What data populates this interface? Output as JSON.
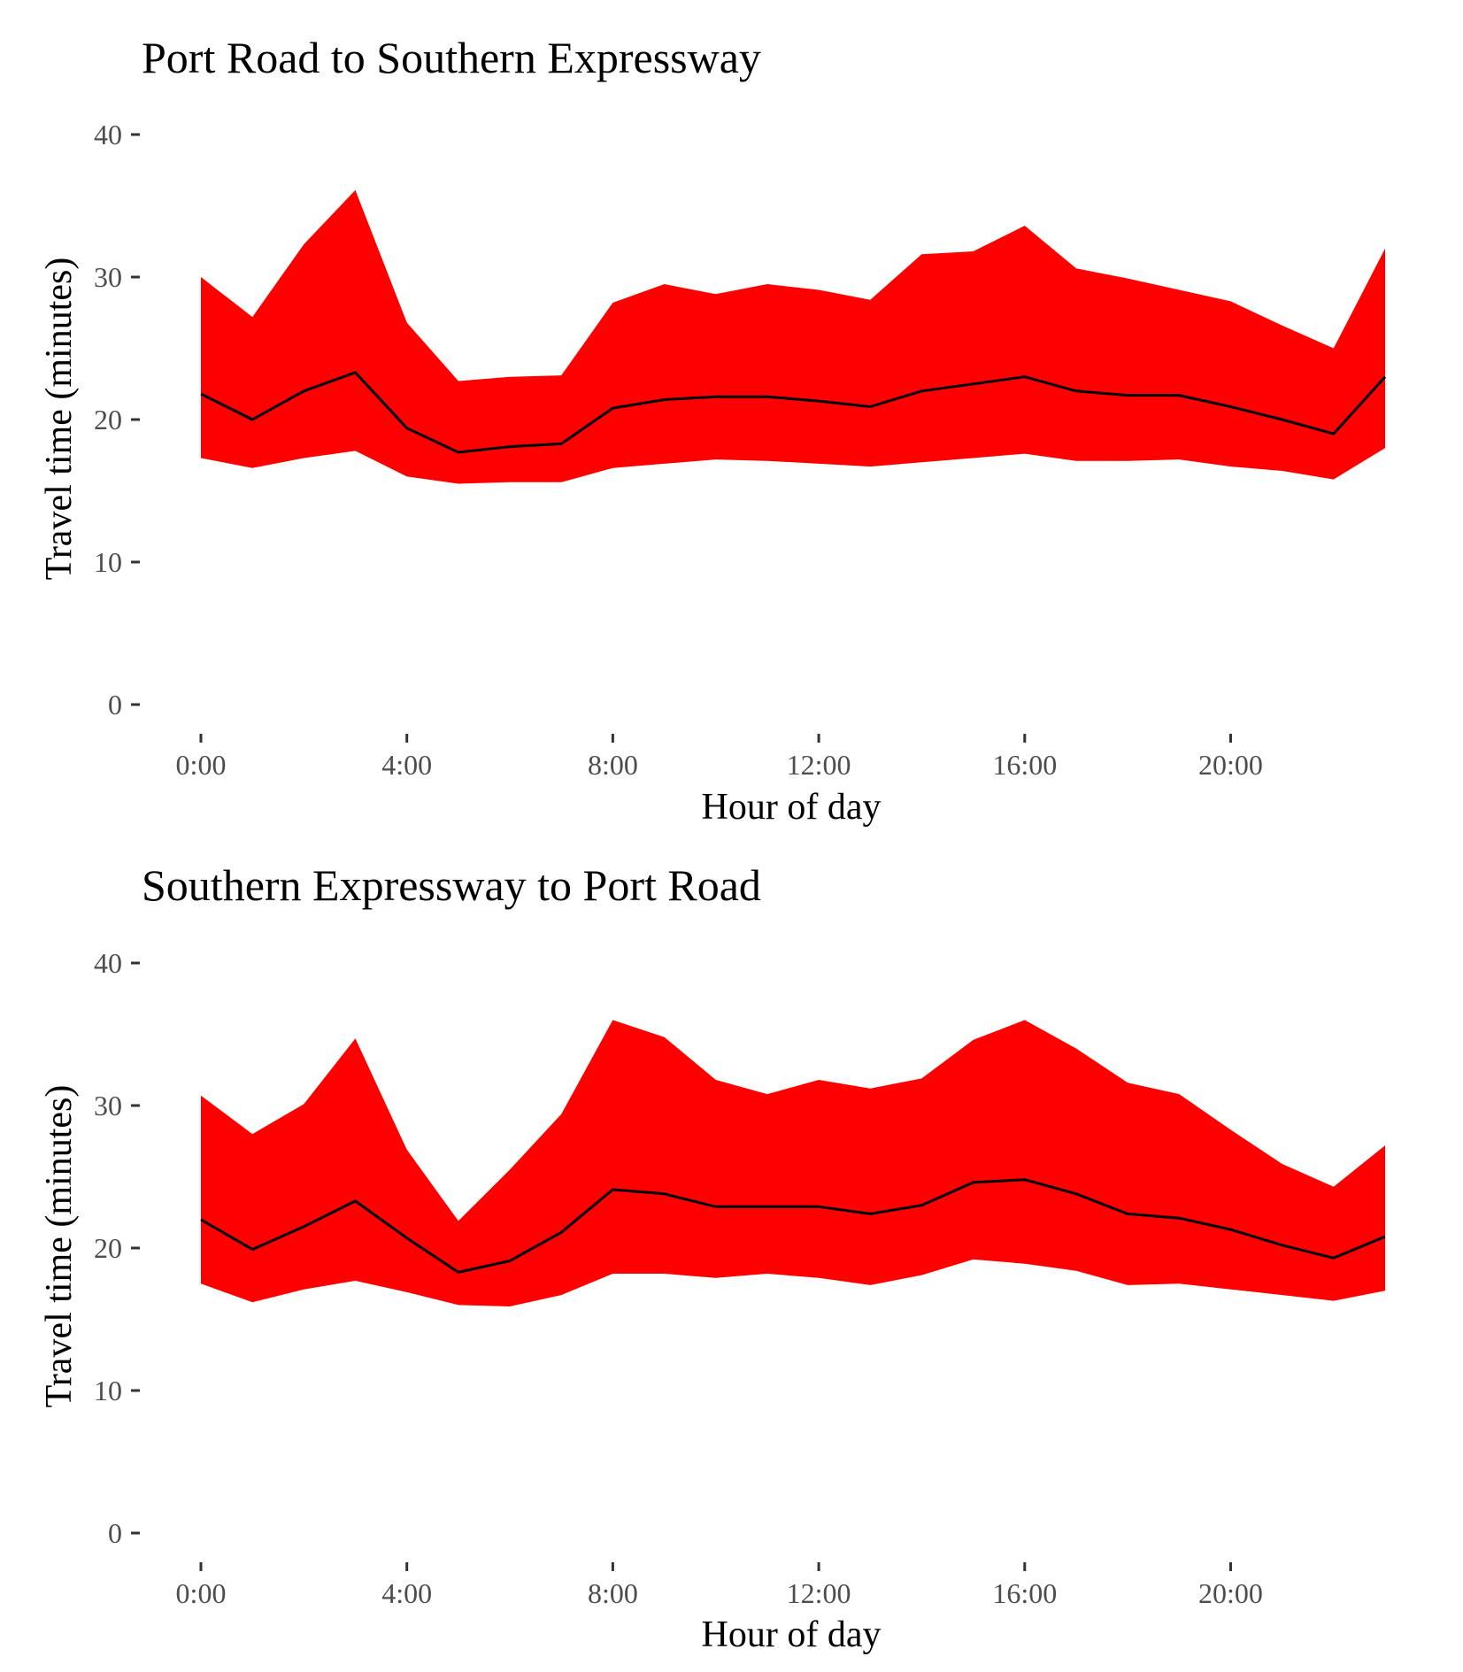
{
  "colors": {
    "band": "#ff0000",
    "line": "#000000",
    "tick_text": "#4d4d4d"
  },
  "chart_data": [
    {
      "type": "area",
      "title": "Port Road to Southern Expressway",
      "xlabel": "Hour of day",
      "ylabel": "Travel time (minutes)",
      "ylim": [
        0,
        40
      ],
      "xlim": [
        0,
        23
      ],
      "x_ticks": [
        {
          "value": 0,
          "label": "0:00"
        },
        {
          "value": 4,
          "label": "4:00"
        },
        {
          "value": 8,
          "label": "8:00"
        },
        {
          "value": 12,
          "label": "12:00"
        },
        {
          "value": 16,
          "label": "16:00"
        },
        {
          "value": 20,
          "label": "20:00"
        }
      ],
      "y_ticks": [
        {
          "value": 0,
          "label": "0"
        },
        {
          "value": 10,
          "label": "10"
        },
        {
          "value": 20,
          "label": "20"
        },
        {
          "value": 30,
          "label": "30"
        },
        {
          "value": 40,
          "label": "40"
        }
      ],
      "grid": false,
      "x": [
        0,
        1,
        2,
        3,
        4,
        5,
        6,
        7,
        8,
        9,
        10,
        11,
        12,
        13,
        14,
        15,
        16,
        17,
        18,
        19,
        20,
        21,
        22,
        23
      ],
      "upper": [
        30.0,
        27.2,
        32.3,
        36.1,
        26.8,
        22.7,
        23.0,
        23.1,
        28.2,
        29.5,
        28.8,
        29.5,
        29.1,
        28.4,
        31.6,
        31.8,
        33.6,
        30.6,
        29.9,
        29.1,
        28.3,
        26.6,
        25.0,
        32.0
      ],
      "median": [
        21.8,
        20.0,
        22.0,
        23.3,
        19.4,
        17.7,
        18.1,
        18.3,
        20.8,
        21.4,
        21.6,
        21.6,
        21.3,
        20.9,
        22.0,
        22.5,
        23.0,
        22.0,
        21.7,
        21.7,
        20.9,
        20.0,
        19.0,
        23.0
      ],
      "lower": [
        17.3,
        16.6,
        17.3,
        17.8,
        16.0,
        15.5,
        15.6,
        15.6,
        16.6,
        16.9,
        17.2,
        17.1,
        16.9,
        16.7,
        17.0,
        17.3,
        17.6,
        17.1,
        17.1,
        17.2,
        16.7,
        16.4,
        15.8,
        18.0
      ]
    },
    {
      "type": "area",
      "title": "Southern Expressway to Port Road",
      "xlabel": "Hour of day",
      "ylabel": "Travel time (minutes)",
      "ylim": [
        0,
        40
      ],
      "xlim": [
        0,
        23
      ],
      "x_ticks": [
        {
          "value": 0,
          "label": "0:00"
        },
        {
          "value": 4,
          "label": "4:00"
        },
        {
          "value": 8,
          "label": "8:00"
        },
        {
          "value": 12,
          "label": "12:00"
        },
        {
          "value": 16,
          "label": "16:00"
        },
        {
          "value": 20,
          "label": "20:00"
        }
      ],
      "y_ticks": [
        {
          "value": 0,
          "label": "0"
        },
        {
          "value": 10,
          "label": "10"
        },
        {
          "value": 20,
          "label": "20"
        },
        {
          "value": 30,
          "label": "30"
        },
        {
          "value": 40,
          "label": "40"
        }
      ],
      "grid": false,
      "x": [
        0,
        1,
        2,
        3,
        4,
        5,
        6,
        7,
        8,
        9,
        10,
        11,
        12,
        13,
        14,
        15,
        16,
        17,
        18,
        19,
        20,
        21,
        22,
        23
      ],
      "upper": [
        30.7,
        28.0,
        30.1,
        34.7,
        26.9,
        21.9,
        25.5,
        29.4,
        36.0,
        34.8,
        31.8,
        30.8,
        31.8,
        31.2,
        31.9,
        34.6,
        36.0,
        34.0,
        31.6,
        30.8,
        28.3,
        25.9,
        24.3,
        27.2
      ],
      "median": [
        22.0,
        19.9,
        21.5,
        23.3,
        20.7,
        18.3,
        19.1,
        21.1,
        24.1,
        23.8,
        22.9,
        22.9,
        22.9,
        22.4,
        23.0,
        24.6,
        24.8,
        23.8,
        22.4,
        22.1,
        21.3,
        20.2,
        19.3,
        20.8
      ],
      "lower": [
        17.5,
        16.2,
        17.1,
        17.7,
        16.9,
        16.0,
        15.9,
        16.7,
        18.2,
        18.2,
        17.9,
        18.2,
        17.9,
        17.4,
        18.1,
        19.2,
        18.9,
        18.4,
        17.4,
        17.5,
        17.1,
        16.7,
        16.3,
        17.0
      ]
    }
  ]
}
